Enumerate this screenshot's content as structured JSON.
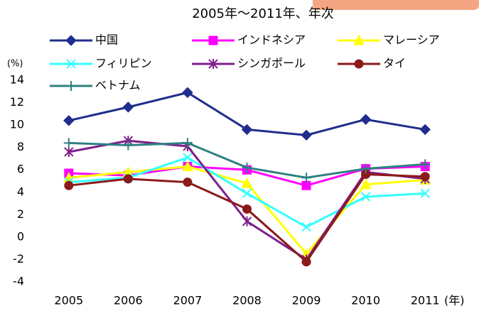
{
  "chart_data": {
    "type": "line",
    "title": "2005年～2011年、年次",
    "y_unit": "(%)",
    "x_unit": "(年)",
    "categories": [
      "2005",
      "2006",
      "2007",
      "2008",
      "2009",
      "2010",
      "2011"
    ],
    "ylim": [
      -4,
      14
    ],
    "yticks": [
      -4,
      -2,
      0,
      2,
      4,
      6,
      8,
      10,
      12,
      14
    ],
    "series": [
      {
        "name": "中国",
        "color": "#1f2d8c",
        "marker": "diamond",
        "values": [
          10.4,
          11.6,
          12.9,
          9.6,
          9.1,
          10.5,
          9.6
        ]
      },
      {
        "name": "インドネシア",
        "color": "#ff00ff",
        "marker": "square",
        "values": [
          5.7,
          5.5,
          6.3,
          6.0,
          4.6,
          6.1,
          6.3
        ]
      },
      {
        "name": "マレーシア",
        "color": "#ffff00",
        "marker": "triangle",
        "values": [
          5.3,
          5.8,
          6.3,
          4.8,
          -1.5,
          4.7,
          5.1
        ]
      },
      {
        "name": "フィリピン",
        "color": "#33ffff",
        "marker": "x",
        "values": [
          4.9,
          5.3,
          7.1,
          3.9,
          0.9,
          3.6,
          3.9
        ]
      },
      {
        "name": "シンガポール",
        "color": "#7f1f8c",
        "marker": "asterisk",
        "values": [
          7.6,
          8.6,
          8.1,
          1.4,
          -2.0,
          5.8,
          5.2
        ]
      },
      {
        "name": "タイ",
        "color": "#8b1a1a",
        "marker": "circle",
        "values": [
          4.6,
          5.2,
          4.9,
          2.5,
          -2.2,
          5.6,
          5.4
        ]
      },
      {
        "name": "ベトナム",
        "color": "#2f8080",
        "marker": "plus",
        "values": [
          8.4,
          8.2,
          8.4,
          6.2,
          5.3,
          6.1,
          6.5
        ]
      }
    ]
  }
}
